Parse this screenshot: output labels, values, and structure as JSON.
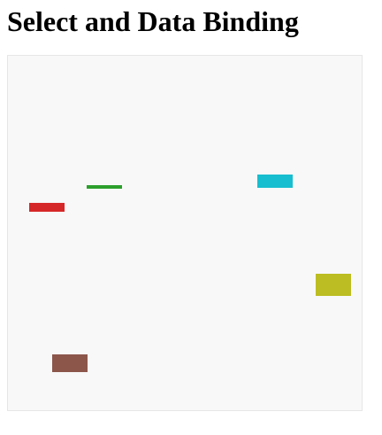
{
  "page": {
    "title": "Select and Data Binding"
  },
  "canvas": {
    "rects": [
      {
        "name": "red-rect",
        "color": "#d62728",
        "size_level": 0.25
      },
      {
        "name": "green-rect",
        "color": "#2ca02c",
        "size_level": 0.1
      },
      {
        "name": "cyan-rect",
        "color": "#17becf",
        "size_level": 0.375
      },
      {
        "name": "olive-rect",
        "color": "#bcbd22",
        "size_level": 0.625
      },
      {
        "name": "brown-rect",
        "color": "#8c564b",
        "size_level": 0.5
      }
    ]
  }
}
